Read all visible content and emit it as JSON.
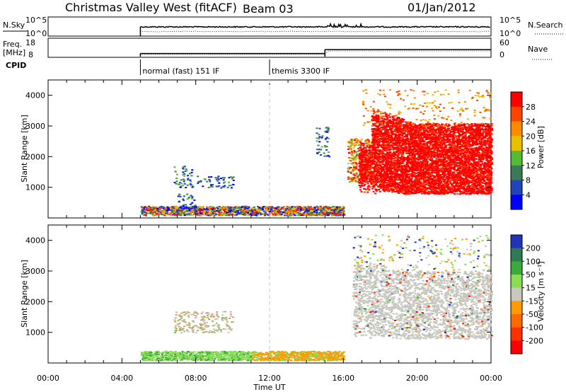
{
  "header": {
    "title": "Christmas Valley West (fitACF)",
    "beam": "Beam 03",
    "date": "01/Jan/2012"
  },
  "ops_panel": {
    "nsky_label": "N.Sky",
    "nsky_ticks": [
      "10^5",
      "10^0"
    ],
    "nsearch_label": "N.Search",
    "nsearch_ticks": [
      "10^5",
      "10^0"
    ],
    "freq_label": "Freq.",
    "freq_unit": "[MHz]",
    "freq_ticks": [
      "18",
      "8"
    ],
    "nave_label": "Nave",
    "nave_ticks": [
      "60",
      "0"
    ],
    "cpid_label": "CPID",
    "cpid_modes": [
      {
        "start_hour": 5.0,
        "label": "normal (fast) 151 IF"
      },
      {
        "start_hour": 12.0,
        "label": "themis 3300 IF"
      }
    ],
    "freq_steps": [
      {
        "start_hour": 5.0,
        "end_hour": 15.0,
        "mhz": 10.0
      },
      {
        "start_hour": 15.0,
        "end_hour": 24.0,
        "mhz": 12.5
      }
    ]
  },
  "chart_data": [
    {
      "type": "heatmap",
      "name": "power",
      "ylabel": "Slant Range [km]",
      "yticks": [
        1000,
        2000,
        3000,
        4000
      ],
      "ylim": [
        0,
        4500
      ],
      "xlim": [
        0,
        24
      ],
      "xticks": [
        "00:00",
        "04:00",
        "08:00",
        "12:00",
        "16:00",
        "20:00",
        "00:00"
      ],
      "colorbar_label": "Power [dB]",
      "colorbar_ticks": [
        "4",
        "8",
        "12",
        "16",
        "20",
        "24",
        "28"
      ],
      "colorbar_colors": [
        "#0000ff",
        "#2244bb",
        "#3a7a55",
        "#55bb33",
        "#e8c000",
        "#ff8a00",
        "#ff4400",
        "#ff0000"
      ],
      "regions": [
        {
          "t0": 5.0,
          "t1": 16.0,
          "r0": 100,
          "r1": 400,
          "level": "mixed"
        },
        {
          "t0": 6.8,
          "t1": 7.8,
          "r0": 1000,
          "r1": 1700,
          "level": "low"
        },
        {
          "t0": 8.0,
          "t1": 10.0,
          "r0": 1000,
          "r1": 1400,
          "level": "low"
        },
        {
          "t0": 7.0,
          "t1": 8.0,
          "r0": 300,
          "r1": 800,
          "level": "low"
        },
        {
          "t0": 14.5,
          "t1": 15.2,
          "r0": 2000,
          "r1": 3000,
          "level": "low"
        },
        {
          "t0": 16.2,
          "t1": 17.5,
          "r0": 1200,
          "r1": 2600,
          "level": "mid"
        },
        {
          "t0": 16.8,
          "t1": 24.0,
          "r0": 800,
          "r1": 2000,
          "level": "high"
        },
        {
          "t0": 17.5,
          "t1": 24.0,
          "r0": 2000,
          "r1": 3100,
          "level": "high"
        },
        {
          "t0": 17.0,
          "t1": 24.0,
          "r0": 3000,
          "r1": 4200,
          "level": "sparse"
        }
      ]
    },
    {
      "type": "heatmap",
      "name": "velocity",
      "ylabel": "Slant Range [km]",
      "yticks": [
        1000,
        2000,
        3000,
        4000
      ],
      "ylim": [
        0,
        4500
      ],
      "xlim": [
        0,
        24
      ],
      "xticks": [
        "00:00",
        "04:00",
        "08:00",
        "12:00",
        "16:00",
        "20:00",
        "00:00"
      ],
      "xlabel": "Time UT",
      "colorbar_label": "Velocity [m s⁻¹]",
      "colorbar_ticks": [
        "200",
        "100",
        "50",
        "15",
        "-15",
        "-50",
        "-100",
        "-200"
      ],
      "colorbar_colors": [
        "#2233bb",
        "#2e7a52",
        "#3aaa3a",
        "#88dd55",
        "#c8c8c0",
        "#ff9a00",
        "#ff6a00",
        "#ff3000",
        "#ff0000"
      ],
      "regions": [
        {
          "t0": 5.0,
          "t1": 16.0,
          "r0": 100,
          "r1": 400,
          "level": "green-orange"
        },
        {
          "t0": 6.8,
          "t1": 10.0,
          "r0": 1000,
          "r1": 1700,
          "level": "tan"
        },
        {
          "t0": 16.5,
          "t1": 24.0,
          "r0": 800,
          "r1": 3000,
          "level": "grey"
        },
        {
          "t0": 16.5,
          "t1": 24.0,
          "r0": 3000,
          "r1": 4200,
          "level": "sparse"
        }
      ]
    }
  ]
}
